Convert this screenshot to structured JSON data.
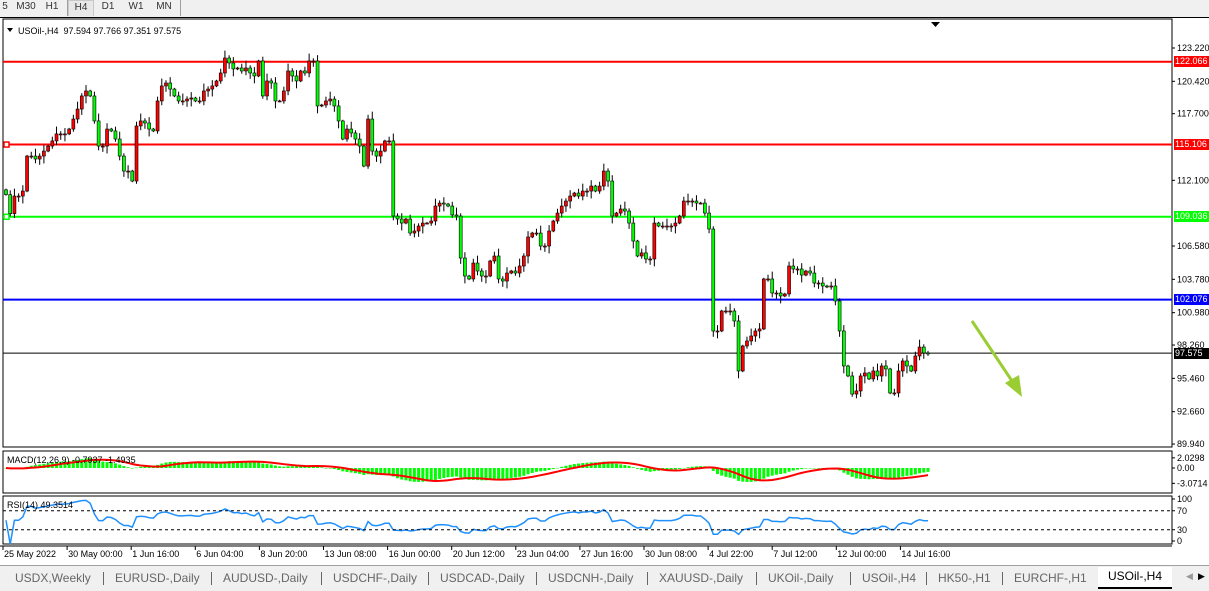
{
  "toolbar": {
    "timeframes": [
      "5",
      "M30",
      "H1",
      "H4",
      "D1",
      "W1",
      "MN"
    ],
    "active": "H4"
  },
  "chart_header": {
    "symbol": "USOil-,H4",
    "ohlc": "97.594 97.766 97.351 97.575"
  },
  "price_axis": {
    "ticks": [
      "123.220",
      "120.420",
      "117.700",
      "112.100",
      "106.580",
      "103.780",
      "100.980",
      "98.260",
      "95.460",
      "92.660",
      "89.940"
    ]
  },
  "levels": [
    {
      "label": "122.066",
      "price": 122.066,
      "color": "#ff0000"
    },
    {
      "label": "115.106",
      "price": 115.106,
      "color": "#ff0000"
    },
    {
      "label": "109.036",
      "price": 109.036,
      "color": "#00ff00"
    },
    {
      "label": "102.076",
      "price": 102.076,
      "color": "#0000ff"
    },
    {
      "label": "97.575",
      "price": 97.575,
      "color": "#000000"
    }
  ],
  "macd": {
    "label": "MACD(12,26,9) -0.7937 -1.4935",
    "ticks": [
      "2.0298",
      "0.00",
      "-3.0714"
    ],
    "histogram_color": "#00ff00",
    "signal_color": "#ff0000"
  },
  "rsi": {
    "label": "RSI(14) 49.3514",
    "ticks": [
      "100",
      "70",
      "30",
      "0"
    ],
    "color": "#1e90ff"
  },
  "time_axis": [
    "25 May 2022",
    "30 May 00:00",
    "1 Jun 16:00",
    "6 Jun 04:00",
    "8 Jun 20:00",
    "13 Jun 08:00",
    "16 Jun 00:00",
    "20 Jun 12:00",
    "23 Jun 04:00",
    "27 Jun 16:00",
    "30 Jun 08:00",
    "4 Jul 22:00",
    "7 Jul 12:00",
    "12 Jul 00:00",
    "14 Jul 16:00"
  ],
  "tabs": [
    "USDX,Weekly",
    "EURUSD-,Daily",
    "AUDUSD-,Daily",
    "USDCHF-,Daily",
    "USDCAD-,Daily",
    "USDCNH-,Daily",
    "XAUUSD-,Daily",
    "UKOil-,Daily",
    "USOil-,H4",
    "HK50-,H1",
    "EURCHF-,H1",
    "USOil-,H4"
  ],
  "active_tab": 11,
  "colors": {
    "bull": "#ff0000",
    "bear": "#00ff00",
    "arrow": "#9acd32"
  },
  "chart_data": {
    "type": "candlestick",
    "ylim": [
      89.94,
      123.22
    ],
    "last_candle": {
      "open": 97.594,
      "high": 97.766,
      "low": 97.351,
      "close": 97.575
    },
    "closes": [
      110.9,
      109.3,
      110.78,
      110.78,
      111.2,
      114.14,
      114.14,
      113.89,
      114.14,
      114.56,
      114.98,
      115.41,
      116.0,
      116.0,
      116.0,
      116.41,
      117.25,
      118.09,
      119.19,
      119.61,
      119.19,
      117.09,
      114.98,
      114.98,
      116.41,
      116.25,
      115.57,
      114.14,
      112.88,
      112.88,
      112.04,
      116.67,
      117.09,
      116.92,
      116.41,
      116.25,
      118.77,
      120.03,
      120.28,
      119.77,
      119.19,
      118.77,
      118.77,
      118.93,
      119.02,
      118.77,
      118.77,
      119.61,
      119.77,
      120.03,
      120.45,
      121.12,
      122.38,
      121.96,
      121.46,
      121.54,
      121.29,
      121.54,
      121.12,
      120.87,
      122.13,
      119.19,
      120.45,
      120.28,
      118.77,
      118.77,
      119.61,
      121.29,
      120.87,
      120.45,
      121.29,
      121.12,
      122.13,
      122.13,
      118.35,
      118.43,
      118.77,
      118.93,
      118.35,
      117.09,
      115.57,
      116.41,
      116.08,
      115.57,
      114.98,
      113.3,
      117.25,
      114.56,
      114.14,
      114.56,
      115.41,
      115.41,
      109.1,
      108.85,
      108.51,
      108.85,
      107.67,
      107.84,
      108.26,
      108.51,
      108.51,
      108.68,
      109.94,
      110.19,
      110.11,
      109.94,
      109.19,
      109.1,
      105.57,
      104.06,
      103.81,
      105.15,
      104.48,
      104.06,
      104.06,
      105.32,
      105.74,
      103.81,
      103.64,
      104.31,
      104.48,
      104.31,
      104.9,
      105.74,
      107.34,
      107.67,
      107.67,
      106.58,
      106.58,
      107.84,
      108.68,
      109.35,
      109.94,
      110.36,
      110.78,
      111.03,
      110.78,
      111.2,
      111.2,
      111.62,
      111.2,
      111.62,
      112.88,
      112.04,
      109.1,
      109.35,
      109.69,
      109.52,
      108.51,
      107.0,
      105.74,
      106.0,
      105.49,
      105.49,
      108.51,
      108.26,
      108.26,
      108.26,
      108.26,
      108.51,
      109.1,
      110.36,
      110.36,
      110.36,
      110.19,
      110.19,
      109.35,
      108.01,
      99.44,
      99.44,
      101.12,
      101.12,
      101.12,
      100.28,
      96.08,
      98.18,
      98.6,
      99.02,
      99.44,
      99.61,
      103.81,
      103.81,
      102.63,
      102.63,
      102.38,
      102.55,
      104.9,
      104.65,
      104.65,
      104.14,
      104.48,
      104.31,
      103.47,
      103.47,
      103.22,
      103.14,
      103.22,
      101.96,
      99.44,
      96.5,
      95.66,
      94.14,
      94.4,
      95.66,
      95.91,
      95.41,
      96.08,
      95.66,
      96.5,
      96.25,
      94.23,
      94.23,
      96.08,
      96.92,
      96.5,
      96.08,
      97.34,
      98.09,
      97.594,
      97.575
    ]
  }
}
